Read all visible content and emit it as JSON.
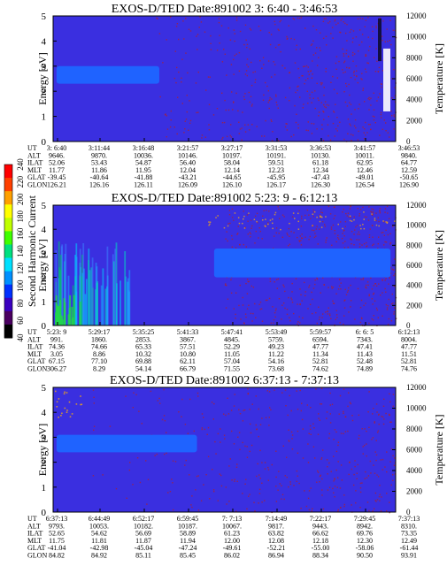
{
  "colors": {
    "background": "#3a2fe0",
    "band": "#1f63ff",
    "noise": "#b0202a",
    "frame": "#000000"
  },
  "colorbar": {
    "label": "Second Harmonic Current",
    "ticks": [
      "40",
      "60",
      "80",
      "100",
      "120",
      "140",
      "160",
      "180",
      "200",
      "220",
      "240"
    ]
  },
  "chart_data": [
    {
      "type": "heatmap",
      "title": "EXOS-D/TED   Date:891002   3: 6:40 - 3:46:53",
      "ylabel": "Energy [eV]",
      "y2label": "Temperature [K]",
      "ylim": [
        0,
        5
      ],
      "y2lim": [
        0,
        12000
      ],
      "yticks": [
        "0",
        "1",
        "2",
        "3",
        "4",
        "5"
      ],
      "y2ticks": [
        "0",
        "2000",
        "4000",
        "6000",
        "8000",
        "10000",
        "12000"
      ],
      "band": {
        "eV_low": 2.3,
        "eV_high": 3.0,
        "frac_end": 0.31
      },
      "row_labels": [
        "UT",
        "ALT",
        "ILAT",
        "MLT",
        "GLAT",
        "GLON"
      ],
      "columns": [
        [
          "3: 6:40",
          "9646.",
          "52.06",
          "11.77",
          "-39.45",
          "126.21"
        ],
        [
          "3:11:44",
          "9870.",
          "53.43",
          "11.86",
          "-40.64",
          "126.16"
        ],
        [
          "3:16:48",
          "10036.",
          "54.87",
          "11.95",
          "-41.88",
          "126.11"
        ],
        [
          "3:21:57",
          "10146.",
          "56.40",
          "12.04",
          "-43.21",
          "126.09"
        ],
        [
          "3:27:17",
          "10197.",
          "58.04",
          "12.14",
          "-44.65",
          "126.10"
        ],
        [
          "3:31:53",
          "10191.",
          "59.51",
          "12.23",
          "-45.95",
          "126.17"
        ],
        [
          "3:36:53",
          "10130.",
          "61.18",
          "12.34",
          "-47.43",
          "126.30"
        ],
        [
          "3:41:57",
          "10011.",
          "62.95",
          "12.46",
          "-49.01",
          "126.54"
        ],
        [
          "3:46:53",
          "9840.",
          "64.77",
          "12.59",
          "-50.65",
          "126.90"
        ]
      ]
    },
    {
      "type": "heatmap",
      "title": "EXOS-D/TED   Date:891002   5:23: 9 - 6:12:13",
      "ylabel": "Energy [eV]",
      "y2label": "Temperature [K]",
      "ylim": [
        0,
        5
      ],
      "y2lim": [
        0,
        12000
      ],
      "yticks": [
        "0",
        "1",
        "2",
        "3",
        "4",
        "5"
      ],
      "y2ticks": [
        "0",
        "2000",
        "4000",
        "6000",
        "8000",
        "10000",
        "12000"
      ],
      "band": {
        "eV_low": 2.0,
        "eV_high": 3.2,
        "frac_start": 0.47
      },
      "row_labels": [
        "UT",
        "ALT",
        "ILAT",
        "MLT",
        "GLAT",
        "GLON"
      ],
      "columns": [
        [
          "5:23: 9",
          "991.",
          "74.36",
          "3.05",
          "67.15",
          "306.27"
        ],
        [
          "5:29:17",
          "1860.",
          "74.66",
          "8.86",
          "77.10",
          "8.29"
        ],
        [
          "5:35:25",
          "2853.",
          "65.33",
          "10.32",
          "69.88",
          "54.14"
        ],
        [
          "5:41:33",
          "3867.",
          "57.51",
          "10.80",
          "62.11",
          "66.79"
        ],
        [
          "5:47:41",
          "4845.",
          "52.29",
          "11.05",
          "57.04",
          "71.55"
        ],
        [
          "5:53:49",
          "5759.",
          "49.23",
          "11.22",
          "54.16",
          "73.68"
        ],
        [
          "5:59:57",
          "6594.",
          "47.77",
          "11.34",
          "52.81",
          "74.62"
        ],
        [
          "6: 6: 5",
          "7343.",
          "47.41",
          "11.43",
          "52.48",
          "74.89"
        ],
        [
          "6:12:13",
          "8004.",
          "47.77",
          "11.51",
          "52.81",
          "74.76"
        ]
      ]
    },
    {
      "type": "heatmap",
      "title": "EXOS-D/TED   Date:891002   6:37:13 - 7:37:13",
      "ylabel": "Energy [eV]",
      "y2label": "Temperature [K]",
      "ylim": [
        0,
        5
      ],
      "y2lim": [
        0,
        12000
      ],
      "yticks": [
        "0",
        "1",
        "2",
        "3",
        "4",
        "5"
      ],
      "y2ticks": [
        "0",
        "2000",
        "4000",
        "6000",
        "8000",
        "10000",
        "12000"
      ],
      "band": {
        "eV_low": 2.4,
        "eV_high": 3.1,
        "frac_end": 0.42
      },
      "row_labels": [
        "UT",
        "ALT",
        "ILAT",
        "MLT",
        "GLAT",
        "GLON"
      ],
      "columns": [
        [
          "6:37:13",
          "9793.",
          "52.65",
          "11.75",
          "-41.04",
          "84.82"
        ],
        [
          "6:44:49",
          "10053.",
          "54.62",
          "11.81",
          "-42.98",
          "84.92"
        ],
        [
          "6:52:17",
          "10182.",
          "56.69",
          "11.87",
          "-45.04",
          "85.11"
        ],
        [
          "6:59:45",
          "10187.",
          "58.89",
          "11.94",
          "-47.24",
          "85.45"
        ],
        [
          "7: 7:13",
          "10067.",
          "61.23",
          "12.00",
          "-49.61",
          "86.02"
        ],
        [
          "7:14:49",
          "9817.",
          "63.82",
          "12.08",
          "-52.21",
          "86.94"
        ],
        [
          "7:22:17",
          "9443.",
          "66.62",
          "12.18",
          "-55.00",
          "88.34"
        ],
        [
          "7:29:45",
          "8942.",
          "69.76",
          "12.30",
          "-58.06",
          "90.50"
        ],
        [
          "7:37:13",
          "8310.",
          "73.35",
          "12.49",
          "-61.44",
          "93.91"
        ]
      ]
    }
  ]
}
